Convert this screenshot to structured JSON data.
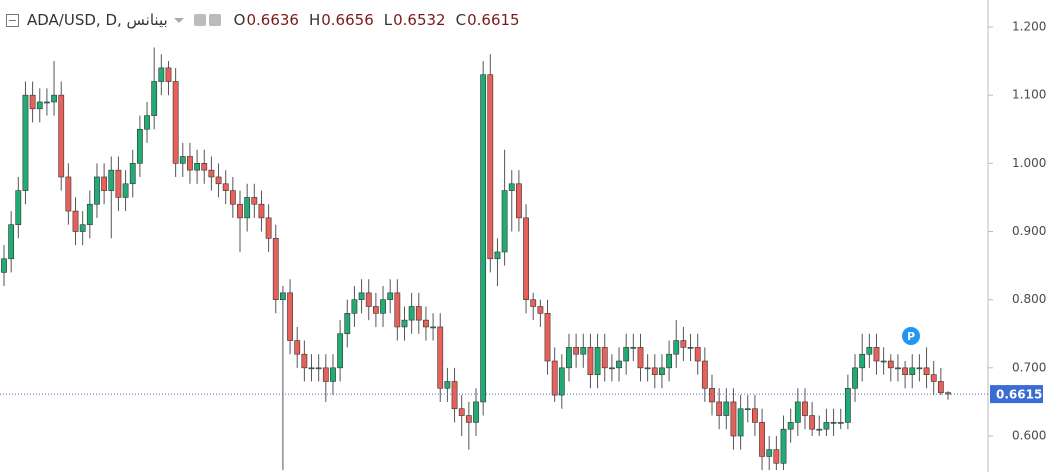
{
  "chart_data": {
    "type": "candlestick",
    "title": "ADA/USD, D, بينانس",
    "ohlc_labels": [
      "O",
      "H",
      "L",
      "C"
    ],
    "marker_label": "P",
    "up_color": "#22ab75",
    "down_color": "#e8605a",
    "ylim": [
      0.5472,
      1.2396
    ],
    "yticks": [
      {
        "value": 0.6,
        "label": "0.6000"
      },
      {
        "value": 0.7,
        "label": "0.7000"
      },
      {
        "value": 0.8,
        "label": "0.8000"
      },
      {
        "value": 0.9,
        "label": "0.9000"
      },
      {
        "value": 1.0,
        "label": "1.0000"
      },
      {
        "value": 1.1,
        "label": "1.1000"
      },
      {
        "value": 1.2,
        "label": "1.2000"
      }
    ],
    "open": [
      0.84,
      0.86,
      0.91,
      0.96,
      1.1,
      1.08,
      1.09,
      1.09,
      1.1,
      0.98,
      0.93,
      0.9,
      0.91,
      0.94,
      0.98,
      0.96,
      0.99,
      0.95,
      0.97,
      1.0,
      1.05,
      1.07,
      1.12,
      1.14,
      1.12,
      1.0,
      1.01,
      0.99,
      1.0,
      0.99,
      0.98,
      0.97,
      0.96,
      0.94,
      0.92,
      0.95,
      0.94,
      0.92,
      0.89,
      0.8,
      0.81,
      0.74,
      0.72,
      0.7,
      0.7,
      0.7,
      0.68,
      0.7,
      0.75,
      0.78,
      0.8,
      0.81,
      0.79,
      0.78,
      0.8,
      0.81,
      0.76,
      0.77,
      0.79,
      0.77,
      0.76,
      0.76,
      0.67,
      0.68,
      0.64,
      0.63,
      0.62,
      0.65,
      1.13,
      0.86,
      0.87,
      0.96,
      0.97,
      0.92,
      0.8,
      0.79,
      0.78,
      0.71,
      0.66,
      0.7,
      0.73,
      0.72,
      0.73,
      0.69,
      0.73,
      0.7,
      0.7,
      0.71,
      0.73,
      0.73,
      0.7,
      0.7,
      0.69,
      0.7,
      0.72,
      0.74,
      0.73,
      0.73,
      0.71,
      0.67,
      0.65,
      0.63,
      0.65,
      0.6,
      0.64,
      0.64,
      0.62,
      0.57,
      0.58,
      0.56,
      0.61,
      0.62,
      0.65,
      0.63,
      0.61,
      0.61,
      0.62,
      0.62,
      0.62,
      0.67,
      0.7,
      0.72,
      0.73,
      0.71,
      0.71,
      0.7,
      0.7,
      0.69,
      0.7,
      0.7,
      0.69,
      0.68,
      0.6636
    ],
    "high": [
      0.88,
      0.93,
      0.98,
      1.12,
      1.12,
      1.11,
      1.11,
      1.15,
      1.12,
      1.0,
      0.95,
      0.93,
      0.96,
      1.0,
      1.0,
      1.01,
      1.01,
      0.99,
      1.02,
      1.07,
      1.09,
      1.17,
      1.16,
      1.15,
      1.14,
      1.03,
      1.03,
      1.02,
      1.02,
      1.01,
      1.0,
      0.99,
      0.98,
      0.96,
      0.97,
      0.97,
      0.96,
      0.94,
      0.91,
      0.82,
      0.83,
      0.76,
      0.74,
      0.72,
      0.72,
      0.72,
      0.72,
      0.77,
      0.8,
      0.82,
      0.83,
      0.83,
      0.81,
      0.82,
      0.83,
      0.83,
      0.79,
      0.81,
      0.81,
      0.79,
      0.78,
      0.78,
      0.7,
      0.7,
      0.66,
      0.65,
      0.67,
      1.15,
      1.16,
      0.89,
      1.02,
      0.99,
      0.99,
      0.94,
      0.81,
      0.8,
      0.8,
      0.73,
      0.72,
      0.75,
      0.75,
      0.75,
      0.75,
      0.75,
      0.75,
      0.72,
      0.73,
      0.75,
      0.75,
      0.75,
      0.72,
      0.72,
      0.72,
      0.74,
      0.77,
      0.76,
      0.75,
      0.75,
      0.73,
      0.69,
      0.67,
      0.67,
      0.67,
      0.66,
      0.66,
      0.66,
      0.64,
      0.6,
      0.6,
      0.63,
      0.64,
      0.67,
      0.67,
      0.65,
      0.63,
      0.64,
      0.64,
      0.64,
      0.69,
      0.72,
      0.75,
      0.75,
      0.75,
      0.73,
      0.72,
      0.72,
      0.71,
      0.72,
      0.72,
      0.73,
      0.71,
      0.7,
      0.6656
    ],
    "low": [
      0.82,
      0.84,
      0.89,
      0.94,
      1.06,
      1.06,
      1.07,
      1.07,
      0.96,
      0.91,
      0.88,
      0.88,
      0.89,
      0.92,
      0.94,
      0.89,
      0.93,
      0.93,
      0.95,
      0.98,
      1.03,
      1.05,
      1.1,
      1.1,
      0.98,
      0.98,
      0.97,
      0.97,
      0.97,
      0.96,
      0.95,
      0.94,
      0.92,
      0.87,
      0.9,
      0.92,
      0.9,
      0.87,
      0.78,
      0.55,
      0.72,
      0.7,
      0.68,
      0.68,
      0.68,
      0.65,
      0.66,
      0.68,
      0.73,
      0.76,
      0.78,
      0.77,
      0.76,
      0.76,
      0.78,
      0.74,
      0.74,
      0.75,
      0.75,
      0.74,
      0.74,
      0.65,
      0.65,
      0.62,
      0.6,
      0.58,
      0.6,
      0.63,
      0.84,
      0.82,
      0.85,
      0.9,
      0.9,
      0.78,
      0.77,
      0.76,
      0.69,
      0.65,
      0.64,
      0.68,
      0.7,
      0.7,
      0.67,
      0.67,
      0.68,
      0.68,
      0.68,
      0.69,
      0.71,
      0.68,
      0.68,
      0.67,
      0.67,
      0.68,
      0.7,
      0.71,
      0.71,
      0.69,
      0.65,
      0.63,
      0.61,
      0.61,
      0.58,
      0.58,
      0.62,
      0.6,
      0.55,
      0.55,
      0.55,
      0.55,
      0.59,
      0.6,
      0.61,
      0.6,
      0.6,
      0.6,
      0.6,
      0.61,
      0.61,
      0.65,
      0.68,
      0.7,
      0.69,
      0.69,
      0.68,
      0.68,
      0.67,
      0.67,
      0.68,
      0.67,
      0.66,
      0.66,
      0.6532
    ],
    "close": [
      0.86,
      0.91,
      0.96,
      1.1,
      1.08,
      1.09,
      1.09,
      1.1,
      0.98,
      0.93,
      0.9,
      0.91,
      0.94,
      0.98,
      0.96,
      0.99,
      0.95,
      0.97,
      1.0,
      1.05,
      1.07,
      1.12,
      1.14,
      1.12,
      1.0,
      1.01,
      0.99,
      1.0,
      0.99,
      0.98,
      0.97,
      0.96,
      0.94,
      0.92,
      0.95,
      0.94,
      0.92,
      0.89,
      0.8,
      0.81,
      0.74,
      0.72,
      0.7,
      0.7,
      0.7,
      0.68,
      0.7,
      0.75,
      0.78,
      0.8,
      0.81,
      0.79,
      0.78,
      0.8,
      0.81,
      0.76,
      0.77,
      0.79,
      0.77,
      0.76,
      0.76,
      0.67,
      0.68,
      0.64,
      0.63,
      0.62,
      0.65,
      1.13,
      0.86,
      0.87,
      0.96,
      0.97,
      0.92,
      0.8,
      0.79,
      0.78,
      0.71,
      0.66,
      0.7,
      0.73,
      0.72,
      0.73,
      0.69,
      0.73,
      0.7,
      0.7,
      0.71,
      0.73,
      0.73,
      0.7,
      0.7,
      0.69,
      0.7,
      0.72,
      0.74,
      0.73,
      0.73,
      0.71,
      0.67,
      0.65,
      0.63,
      0.65,
      0.6,
      0.64,
      0.64,
      0.62,
      0.57,
      0.58,
      0.56,
      0.61,
      0.62,
      0.65,
      0.63,
      0.61,
      0.61,
      0.62,
      0.62,
      0.62,
      0.67,
      0.7,
      0.72,
      0.73,
      0.71,
      0.71,
      0.7,
      0.7,
      0.69,
      0.7,
      0.7,
      0.69,
      0.68,
      0.6636,
      0.6615
    ]
  }
}
